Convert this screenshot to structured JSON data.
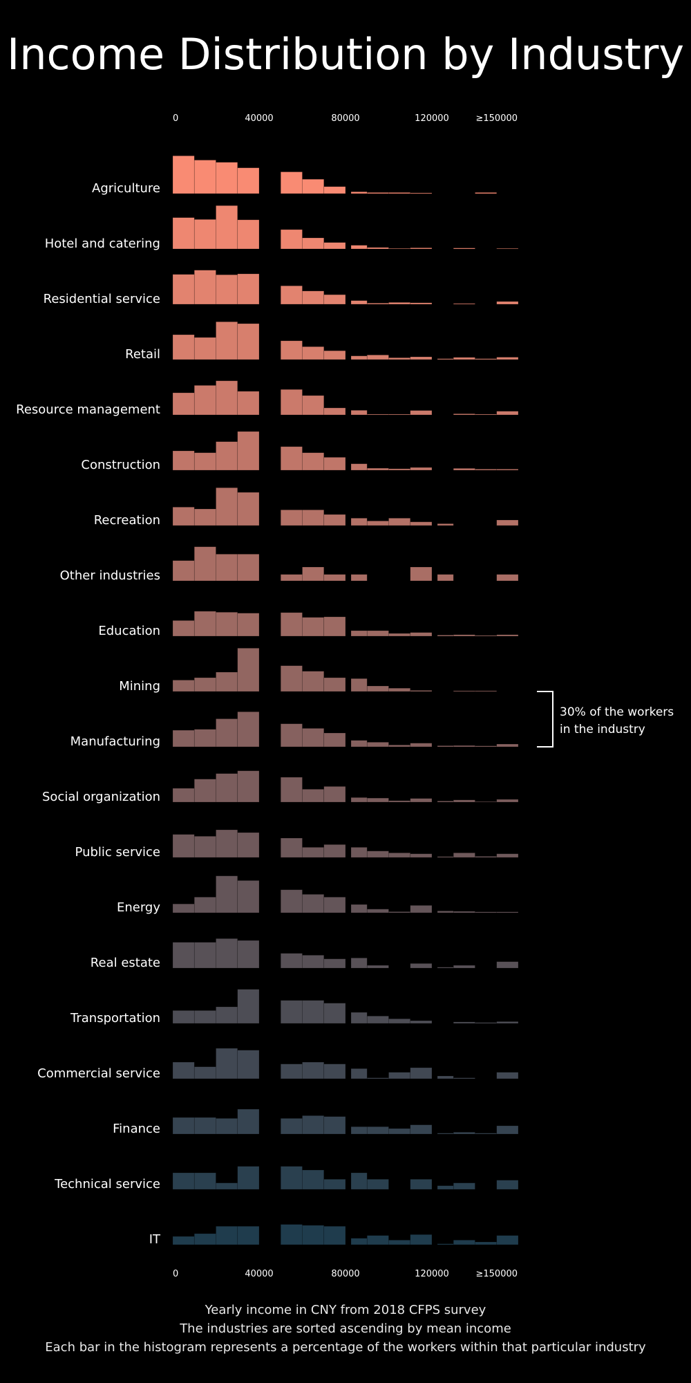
{
  "title": "Income Distribution by Industry",
  "captions": [
    "Yearly income in CNY from 2018 CFPS survey",
    "The industries are sorted ascending by mean income",
    "Each bar in the histogram represents a percentage of the workers within that particular industry"
  ],
  "annotation": [
    "30% of the workers",
    "in the industry"
  ],
  "chart_data": {
    "type": "bar",
    "subtype": "ridgeline-histogram",
    "x_ticks": [
      "0",
      "40000",
      "80000",
      "120000",
      "≥150000"
    ],
    "x_tick_values": [
      0,
      40000,
      80000,
      120000,
      150000
    ],
    "bin_edges": [
      0,
      10000,
      20000,
      30000,
      40000,
      50000,
      60000,
      70000,
      80000,
      90000,
      100000,
      110000,
      120000,
      130000,
      140000,
      150000,
      160000
    ],
    "value_unit": "percent of workers in the industry",
    "reference_value": 30,
    "colors": [
      "#f98b73",
      "#1f3c4d"
    ],
    "industries": [
      {
        "name": "Agriculture",
        "values": [
          20.5,
          18.2,
          17.0,
          14.0,
          0,
          11.8,
          7.8,
          3.8,
          1.0,
          0.6,
          0.6,
          0.4,
          0,
          0,
          0.6,
          0
        ]
      },
      {
        "name": "Hotel and catering",
        "values": [
          17.0,
          16.0,
          23.5,
          15.8,
          0,
          10.5,
          6.0,
          3.5,
          2.0,
          0.8,
          0.3,
          0.6,
          0,
          0.5,
          0,
          0.3
        ]
      },
      {
        "name": "Residential service",
        "values": [
          16.2,
          18.5,
          16.0,
          16.5,
          0,
          10.0,
          7.2,
          5.2,
          2.0,
          0.6,
          1.0,
          0.8,
          0,
          0.4,
          0,
          1.5
        ]
      },
      {
        "name": "Retail",
        "values": [
          13.5,
          12.0,
          20.5,
          19.5,
          0,
          10.2,
          7.0,
          4.8,
          2.0,
          2.5,
          1.0,
          1.5,
          0.5,
          1.2,
          0.5,
          1.3
        ]
      },
      {
        "name": "Resource management",
        "values": [
          12.0,
          16.0,
          18.5,
          12.8,
          0,
          13.8,
          10.5,
          3.8,
          2.5,
          0.4,
          0.4,
          2.4,
          0,
          0.6,
          0.4,
          2.0
        ]
      },
      {
        "name": "Construction",
        "values": [
          10.5,
          9.5,
          15.5,
          21.0,
          0,
          12.8,
          9.5,
          7.0,
          3.5,
          1.1,
          0.8,
          1.5,
          0,
          1.0,
          0.6,
          0.6
        ]
      },
      {
        "name": "Recreation",
        "values": [
          10.0,
          9.0,
          20.5,
          18.0,
          0,
          8.5,
          8.5,
          6.0,
          4.0,
          2.5,
          4.0,
          2.0,
          1.0,
          0,
          0,
          3.0
        ]
      },
      {
        "name": "Other industries",
        "values": [
          11.0,
          18.5,
          14.5,
          14.5,
          0,
          3.5,
          7.5,
          3.5,
          3.5,
          0,
          0,
          7.5,
          3.5,
          0,
          0,
          3.5
        ]
      },
      {
        "name": "Education",
        "values": [
          8.5,
          13.5,
          13.0,
          12.5,
          0,
          12.8,
          10.2,
          10.5,
          3.0,
          3.0,
          1.5,
          2.0,
          0.6,
          0.8,
          0.4,
          0.8
        ]
      },
      {
        "name": "Mining",
        "values": [
          6.2,
          7.5,
          10.5,
          23.5,
          0,
          14.0,
          11.0,
          7.5,
          7.0,
          3.0,
          1.8,
          0.6,
          0,
          0.4,
          0.4,
          0
        ]
      },
      {
        "name": "Manufacturing",
        "values": [
          9.0,
          9.5,
          15.2,
          19.0,
          0,
          12.5,
          10.0,
          7.5,
          3.5,
          2.5,
          1.0,
          2.0,
          0.6,
          0.7,
          0.5,
          1.5
        ]
      },
      {
        "name": "Social organization",
        "values": [
          7.5,
          12.5,
          15.5,
          17.0,
          0,
          13.5,
          7.0,
          8.5,
          2.5,
          2.2,
          0.8,
          2.0,
          0.6,
          1.2,
          0.3,
          1.5
        ]
      },
      {
        "name": "Public service",
        "values": [
          12.5,
          11.5,
          15.0,
          13.5,
          0,
          10.5,
          5.5,
          7.0,
          5.5,
          3.5,
          2.5,
          2.0,
          0.5,
          2.5,
          0.6,
          2.0
        ]
      },
      {
        "name": "Energy",
        "values": [
          4.8,
          8.5,
          20.0,
          17.5,
          0,
          12.5,
          10.0,
          8.5,
          4.5,
          2.0,
          0.6,
          4.0,
          1.0,
          0.8,
          0.5,
          0.5
        ]
      },
      {
        "name": "Real estate",
        "values": [
          14.0,
          14.0,
          16.0,
          15.0,
          0,
          8.0,
          7.0,
          5.0,
          5.5,
          1.5,
          0,
          2.5,
          0.5,
          1.5,
          0,
          3.5
        ]
      },
      {
        "name": "Transportation",
        "values": [
          7.0,
          7.0,
          9.0,
          18.5,
          0,
          12.5,
          12.5,
          11.0,
          6.0,
          4.0,
          2.5,
          1.5,
          0,
          0.8,
          0.5,
          1.0
        ]
      },
      {
        "name": "Commercial service",
        "values": [
          9.0,
          6.5,
          16.5,
          15.5,
          0,
          8.0,
          9.0,
          8.0,
          5.5,
          0.5,
          3.5,
          6.0,
          1.5,
          0.5,
          0,
          3.5
        ]
      },
      {
        "name": "Finance",
        "values": [
          9.0,
          9.0,
          8.5,
          13.5,
          0,
          8.5,
          10.0,
          9.5,
          4.0,
          4.0,
          3.0,
          5.0,
          0.5,
          1.0,
          0.5,
          4.5
        ]
      },
      {
        "name": "Technical service",
        "values": [
          9.0,
          9.0,
          3.5,
          12.5,
          0,
          12.5,
          10.5,
          5.5,
          9.0,
          5.5,
          0,
          5.5,
          2.0,
          3.5,
          0,
          5.0
        ]
      },
      {
        "name": "IT",
        "values": [
          4.5,
          6.0,
          10.0,
          10.0,
          0,
          11.0,
          10.5,
          10.0,
          3.5,
          5.0,
          2.5,
          5.5,
          0.5,
          2.5,
          1.5,
          5.0
        ]
      }
    ]
  }
}
